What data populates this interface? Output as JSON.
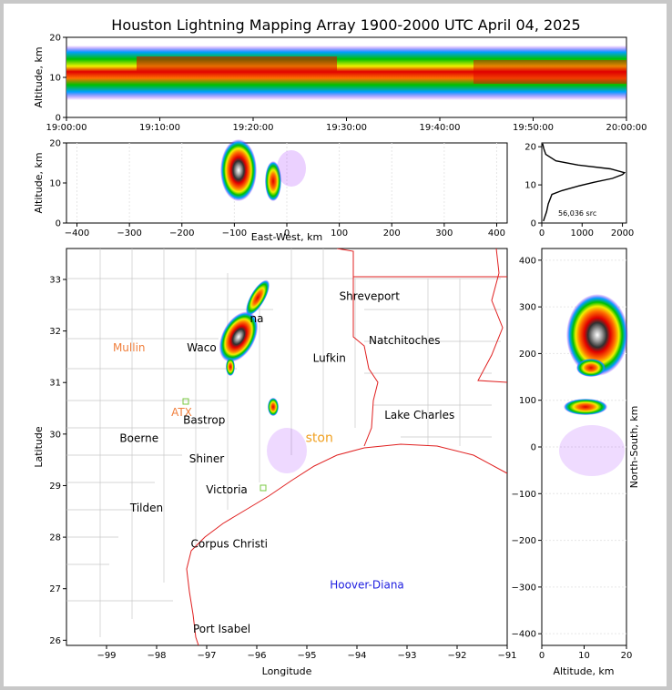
{
  "title": "Houston Lightning Mapping Array 1900-2000 UTC April 04, 2025",
  "chart_data": [
    {
      "panel": "altitude-time",
      "type": "heatmap",
      "ylabel": "Altitude, km",
      "xlim": [
        "19:00:00",
        "20:00:00"
      ],
      "ylim": [
        0,
        20
      ],
      "x_ticks": [
        "19:00:00",
        "19:10:00",
        "19:20:00",
        "19:30:00",
        "19:40:00",
        "19:50:00",
        "20:00:00"
      ],
      "y_ticks": [
        0,
        10,
        20
      ]
    },
    {
      "panel": "altitude-eastwest",
      "type": "heatmap",
      "xlabel": "East-West, km",
      "ylabel": "Altitude, km",
      "xlim": [
        -420,
        420
      ],
      "ylim": [
        0,
        20
      ],
      "x_ticks": [
        -400,
        -300,
        -200,
        -100,
        0,
        100,
        200,
        300,
        400
      ],
      "y_ticks": [
        0,
        10,
        20
      ]
    },
    {
      "panel": "altitude-histogram",
      "type": "line",
      "annotation": "56,036 src",
      "xlim": [
        0,
        2100
      ],
      "ylim": [
        0,
        21
      ],
      "x_ticks": [
        0,
        1000,
        2000
      ],
      "y_ticks": [
        0,
        10,
        20
      ],
      "curve": [
        {
          "count": 40,
          "alt": 0.5
        },
        {
          "count": 120,
          "alt": 3
        },
        {
          "count": 160,
          "alt": 5
        },
        {
          "count": 250,
          "alt": 7.5
        },
        {
          "count": 500,
          "alt": 8.5
        },
        {
          "count": 900,
          "alt": 9.7
        },
        {
          "count": 1300,
          "alt": 10.7
        },
        {
          "count": 1750,
          "alt": 11.7
        },
        {
          "count": 2000,
          "alt": 12.7
        },
        {
          "count": 2050,
          "alt": 13.2
        },
        {
          "count": 1700,
          "alt": 14.2
        },
        {
          "count": 900,
          "alt": 15.2
        },
        {
          "count": 350,
          "alt": 16.3
        },
        {
          "count": 100,
          "alt": 18
        },
        {
          "count": 50,
          "alt": 19.5
        },
        {
          "count": 20,
          "alt": 20.8
        }
      ]
    },
    {
      "panel": "plan-view-map",
      "type": "heatmap",
      "xlabel": "Longitude",
      "ylabel": "Latitude",
      "xlim": [
        -99.8,
        -91
      ],
      "ylim": [
        25.9,
        33.6
      ],
      "x_ticks": [
        -99,
        -98,
        -97,
        -96,
        -95,
        -94,
        -93,
        -92,
        -91
      ],
      "y_ticks": [
        26,
        27,
        28,
        29,
        30,
        31,
        32,
        33
      ],
      "places": [
        {
          "name": "Shreveport",
          "lon": -93.75,
          "lat": 32.6,
          "color": "#000000"
        },
        {
          "name": "Natchitoches",
          "lon": -93.05,
          "lat": 31.75,
          "color": "#000000"
        },
        {
          "name": "Lufkin",
          "lon": -94.55,
          "lat": 31.4,
          "color": "#000000"
        },
        {
          "name": "Waco",
          "lon": -97.1,
          "lat": 31.6,
          "color": "#000000"
        },
        {
          "name": "na",
          "lon": -96.0,
          "lat": 32.17,
          "color": "#000000"
        },
        {
          "name": "Mullin",
          "lon": -98.55,
          "lat": 31.6,
          "color": "#f07f3c"
        },
        {
          "name": "ATX",
          "lon": -97.5,
          "lat": 30.35,
          "color": "#f07f3c"
        },
        {
          "name": "Bastrop",
          "lon": -97.05,
          "lat": 30.2,
          "color": "#000000"
        },
        {
          "name": "Lake Charles",
          "lon": -92.75,
          "lat": 30.3,
          "color": "#000000"
        },
        {
          "name": "Boerne",
          "lon": -98.35,
          "lat": 29.85,
          "color": "#000000"
        },
        {
          "name": "ston",
          "lon": -94.75,
          "lat": 29.85,
          "color": "#f0a020"
        },
        {
          "name": "Shiner",
          "lon": -97.0,
          "lat": 29.45,
          "color": "#000000"
        },
        {
          "name": "Victoria",
          "lon": -96.6,
          "lat": 28.85,
          "color": "#000000"
        },
        {
          "name": "Tilden",
          "lon": -98.2,
          "lat": 28.5,
          "color": "#000000"
        },
        {
          "name": "Corpus Christi",
          "lon": -96.55,
          "lat": 27.8,
          "color": "#000000"
        },
        {
          "name": "Hoover-Diana",
          "lon": -93.8,
          "lat": 27.0,
          "color": "#2020e0"
        },
        {
          "name": "Port Isabel",
          "lon": -96.7,
          "lat": 26.15,
          "color": "#000000"
        }
      ]
    },
    {
      "panel": "altitude-northsouth",
      "type": "heatmap",
      "xlabel": "Altitude, km",
      "ylabel": "North-South, km",
      "xlim": [
        0,
        20
      ],
      "ylim": [
        -425,
        425
      ],
      "x_ticks": [
        0,
        10,
        20
      ],
      "y_ticks": [
        -400,
        -300,
        -200,
        -100,
        0,
        100,
        200,
        300,
        400
      ]
    }
  ]
}
